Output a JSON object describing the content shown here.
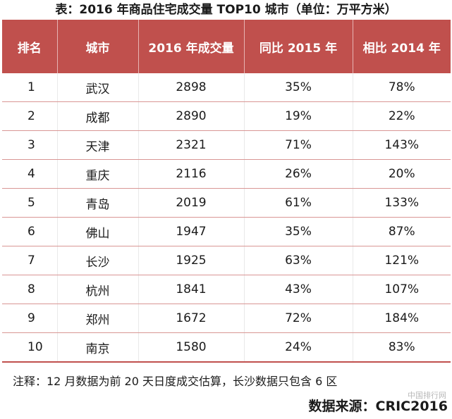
{
  "title": "表：2016 年商品住宅成交量 TOP10 城市（单位：万平方米）",
  "table": {
    "headers": [
      "排名",
      "城市",
      "2016 年成交量",
      "同比 2015 年",
      "相比 2014 年"
    ],
    "rows": [
      {
        "rank": "1",
        "city": "武汉",
        "volume": "2898",
        "yoy2015": "35%",
        "vs2014": "78%"
      },
      {
        "rank": "2",
        "city": "成都",
        "volume": "2890",
        "yoy2015": "19%",
        "vs2014": "22%"
      },
      {
        "rank": "3",
        "city": "天津",
        "volume": "2321",
        "yoy2015": "71%",
        "vs2014": "143%"
      },
      {
        "rank": "4",
        "city": "重庆",
        "volume": "2116",
        "yoy2015": "26%",
        "vs2014": "20%"
      },
      {
        "rank": "5",
        "city": "青岛",
        "volume": "2019",
        "yoy2015": "61%",
        "vs2014": "133%"
      },
      {
        "rank": "6",
        "city": "佛山",
        "volume": "1947",
        "yoy2015": "35%",
        "vs2014": "87%"
      },
      {
        "rank": "7",
        "city": "长沙",
        "volume": "1925",
        "yoy2015": "63%",
        "vs2014": "121%"
      },
      {
        "rank": "8",
        "city": "杭州",
        "volume": "1841",
        "yoy2015": "43%",
        "vs2014": "107%"
      },
      {
        "rank": "9",
        "city": "郑州",
        "volume": "1672",
        "yoy2015": "72%",
        "vs2014": "184%"
      },
      {
        "rank": "10",
        "city": "南京",
        "volume": "1580",
        "yoy2015": "24%",
        "vs2014": "83%"
      }
    ]
  },
  "note": "注释：12 月数据为前 20 天日度成交估算，长沙数据只包含 6 区",
  "source": "数据来源：CRIC2016",
  "watermark": "中国排行网",
  "colors": {
    "header_bg": "#c0504d",
    "header_text": "#ffffff",
    "row_divider": "#d99694"
  }
}
